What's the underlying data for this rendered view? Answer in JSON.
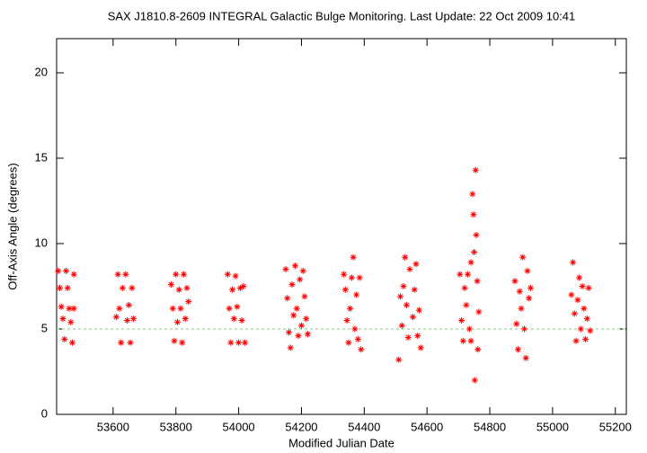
{
  "chart_data": {
    "type": "scatter",
    "title": "SAX J1810.8-2609   INTEGRAL Galactic Bulge Monitoring.  Last Update: 22 Oct 2009 10:41",
    "x_label": "Modified Julian Date",
    "y_label": "Off-Axis Angle (degrees)",
    "color": "#ff0000",
    "hline": 5,
    "hline_color": "#66dd66",
    "xlim": [
      53420,
      55235
    ],
    "ylim": [
      0,
      22
    ],
    "xticks": [
      53600,
      53800,
      54000,
      54200,
      54400,
      54600,
      54800,
      55000,
      55200
    ],
    "yticks": [
      0,
      5,
      10,
      15,
      20
    ],
    "x": [
      53425,
      53430,
      53435,
      53440,
      53445,
      53450,
      53455,
      53460,
      53465,
      53470,
      53475,
      53475,
      53610,
      53615,
      53620,
      53625,
      53630,
      53640,
      53645,
      53650,
      53655,
      53660,
      53665,
      53785,
      53790,
      53795,
      53800,
      53805,
      53810,
      53815,
      53820,
      53825,
      53830,
      53835,
      53840,
      53965,
      53970,
      53975,
      53980,
      53985,
      53990,
      53995,
      54000,
      54005,
      54010,
      54015,
      54020,
      54150,
      54155,
      54160,
      54165,
      54170,
      54175,
      54180,
      54185,
      54190,
      54195,
      54200,
      54205,
      54210,
      54215,
      54220,
      54335,
      54340,
      54345,
      54350,
      54355,
      54360,
      54365,
      54370,
      54375,
      54380,
      54385,
      54390,
      54510,
      54515,
      54520,
      54525,
      54530,
      54535,
      54540,
      54545,
      54555,
      54560,
      54565,
      54570,
      54575,
      54580,
      54705,
      54710,
      54715,
      54720,
      54725,
      54730,
      54735,
      54740,
      54745,
      54748,
      54750,
      54752,
      54755,
      54757,
      54760,
      54762,
      54765,
      54740,
      54880,
      54885,
      54890,
      54895,
      54900,
      54905,
      54910,
      54915,
      54920,
      54925,
      54930,
      55060,
      55065,
      55070,
      55075,
      55080,
      55085,
      55090,
      55095,
      55100,
      55105,
      55110,
      55115,
      55120
    ],
    "values": [
      8.4,
      7.4,
      6.3,
      5.6,
      4.4,
      8.4,
      7.4,
      6.2,
      5.4,
      4.2,
      8.2,
      6.2,
      5.7,
      8.2,
      6.2,
      4.2,
      7.4,
      8.2,
      5.5,
      6.4,
      4.2,
      7.4,
      5.6,
      7.6,
      6.2,
      4.3,
      8.2,
      5.4,
      7.3,
      6.2,
      4.2,
      8.2,
      5.6,
      7.4,
      6.6,
      8.2,
      6.2,
      4.2,
      7.3,
      5.6,
      8.1,
      6.3,
      4.2,
      7.4,
      5.5,
      7.5,
      4.2,
      8.5,
      6.8,
      4.8,
      3.9,
      7.6,
      5.8,
      8.7,
      6.2,
      4.6,
      7.9,
      5.2,
      8.4,
      6.9,
      5.6,
      4.7,
      8.2,
      7.3,
      5.5,
      4.2,
      6.2,
      8.0,
      9.2,
      5.0,
      7.0,
      4.4,
      8.0,
      3.8,
      3.2,
      6.9,
      5.2,
      7.5,
      9.2,
      6.4,
      4.5,
      8.5,
      5.7,
      7.3,
      8.8,
      4.6,
      6.1,
      3.9,
      8.2,
      5.5,
      4.3,
      7.4,
      6.4,
      8.2,
      5.0,
      4.3,
      12.9,
      11.7,
      9.5,
      2.0,
      14.3,
      10.5,
      7.8,
      3.8,
      6.0,
      8.9,
      7.8,
      5.3,
      3.8,
      7.2,
      6.2,
      9.2,
      5.0,
      3.3,
      8.4,
      6.8,
      7.4,
      7.0,
      8.9,
      5.9,
      4.3,
      6.7,
      8.0,
      5.0,
      7.5,
      6.2,
      4.4,
      5.6,
      7.4,
      4.9
    ]
  }
}
